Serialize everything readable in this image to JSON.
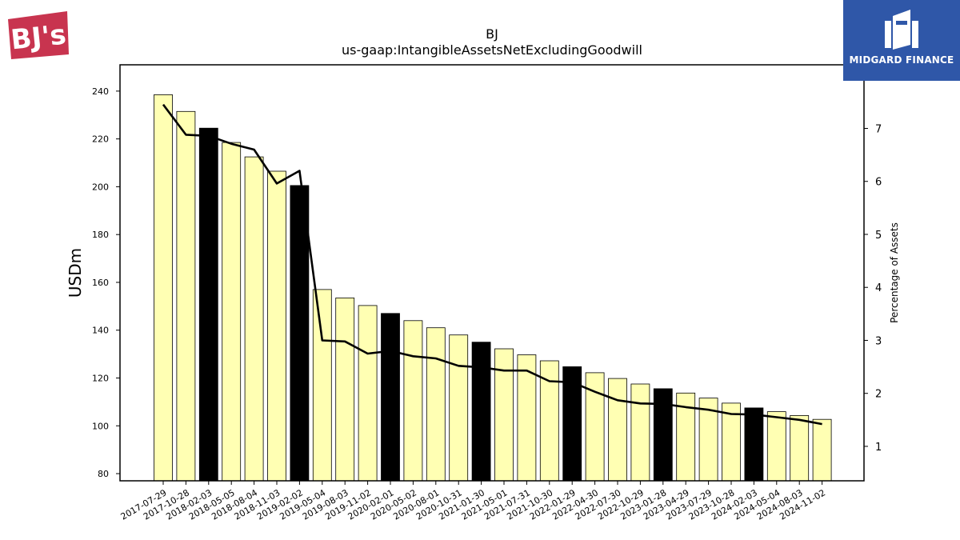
{
  "brand": {
    "left_logo_text": "BJ's",
    "left_logo_color": "#c8344f",
    "right_logo_text": "MIDGARD FINANCE",
    "right_logo_bg": "#2f57a8"
  },
  "chart_data": {
    "type": "bar",
    "title": "BJ",
    "subtitle": "us-gaap:IntangibleAssetsNetExcludingGoodwill",
    "ylabel": "USDm",
    "y2label": "Percentage of Assets",
    "ylim": [
      77,
      251
    ],
    "y2lim": [
      0.35,
      8.2
    ],
    "yticks": [
      80,
      100,
      120,
      140,
      160,
      180,
      200,
      220,
      240
    ],
    "y2ticks": [
      1,
      2,
      3,
      4,
      5,
      6,
      7
    ],
    "grid": false,
    "bar_color": "#ffffb3",
    "highlight_color": "#000000",
    "line_color": "#000000",
    "categories": [
      "2017-07-29",
      "2017-10-28",
      "2018-02-03",
      "2018-05-05",
      "2018-08-04",
      "2018-11-03",
      "2019-02-02",
      "2019-05-04",
      "2019-08-03",
      "2019-11-02",
      "2020-02-01",
      "2020-05-02",
      "2020-08-01",
      "2020-10-31",
      "2021-01-30",
      "2021-05-01",
      "2021-07-31",
      "2021-10-30",
      "2022-01-29",
      "2022-04-30",
      "2022-07-30",
      "2022-10-29",
      "2023-01-28",
      "2023-04-29",
      "2023-07-29",
      "2023-10-28",
      "2024-02-03",
      "2024-05-04",
      "2024-08-03",
      "2024-11-02"
    ],
    "series": [
      {
        "type": "bar",
        "axis": "left",
        "values": [
          238.5,
          231.5,
          224.5,
          218.5,
          212.5,
          206.5,
          200.5,
          157,
          153.5,
          150.3,
          147,
          144,
          141,
          138,
          135,
          132.2,
          129.7,
          127.2,
          124.7,
          122.2,
          119.8,
          117.5,
          115.5,
          113.7,
          111.6,
          109.5,
          107.5,
          105.9,
          104.3,
          102.7
        ],
        "highlight": [
          false,
          false,
          true,
          false,
          false,
          false,
          true,
          false,
          false,
          false,
          true,
          false,
          false,
          false,
          true,
          false,
          false,
          false,
          true,
          false,
          false,
          false,
          true,
          false,
          false,
          false,
          true,
          false,
          false,
          false
        ]
      },
      {
        "type": "line",
        "axis": "right",
        "values": [
          7.45,
          6.88,
          6.86,
          6.71,
          6.6,
          5.96,
          6.2,
          3.0,
          2.98,
          2.75,
          2.8,
          2.7,
          2.66,
          2.52,
          2.49,
          2.43,
          2.43,
          2.23,
          2.21,
          2.03,
          1.87,
          1.81,
          1.8,
          1.74,
          1.69,
          1.61,
          1.6,
          1.55,
          1.5,
          1.42
        ]
      }
    ]
  }
}
